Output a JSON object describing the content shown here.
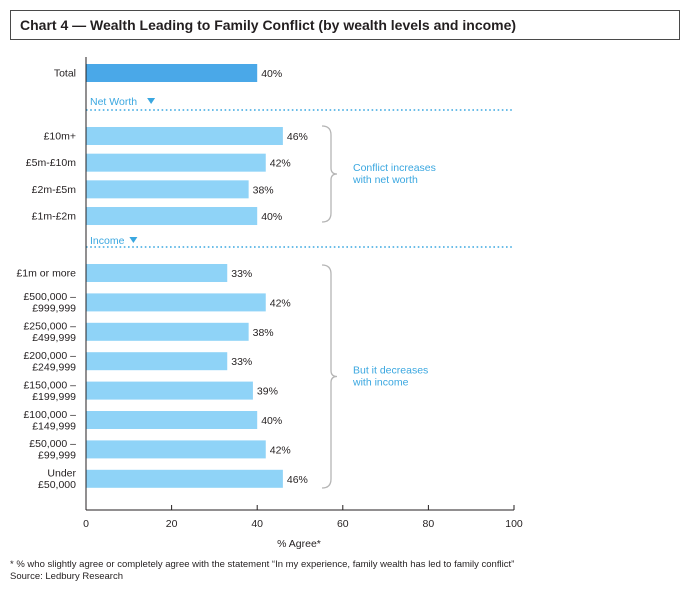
{
  "chart_data": {
    "type": "bar",
    "orientation": "horizontal",
    "title": "Chart 4 — Wealth Leading to Family Conflict (by wealth levels and income)",
    "xlabel": "% Agree*",
    "xlim": [
      0,
      100
    ],
    "xticks": [
      "0",
      "20",
      "40",
      "60",
      "80",
      "100"
    ],
    "total": {
      "label": "Total",
      "value": 40,
      "value_label": "40%"
    },
    "groups": [
      {
        "name": "Net Worth",
        "annotation": [
          "Conflict increases",
          "with net worth"
        ],
        "categories": [
          [
            "£10m+"
          ],
          [
            "£5m-£10m"
          ],
          [
            "£2m-£5m"
          ],
          [
            "£1m-£2m"
          ]
        ],
        "values": [
          46,
          42,
          38,
          40
        ],
        "value_labels": [
          "46%",
          "42%",
          "38%",
          "40%"
        ]
      },
      {
        "name": "Income",
        "annotation": [
          "But it decreases",
          "with income"
        ],
        "categories": [
          [
            "£1m or more"
          ],
          [
            "£500,000 –",
            "£999,999"
          ],
          [
            "£250,000 –",
            "£499,999"
          ],
          [
            "£200,000 –",
            "£249,999"
          ],
          [
            "£150,000 –",
            "£199,999"
          ],
          [
            "£100,000 –",
            "£149,999"
          ],
          [
            "£50,000 –",
            "£99,999"
          ],
          [
            "Under",
            "£50,000"
          ]
        ],
        "values": [
          33,
          42,
          38,
          33,
          39,
          40,
          42,
          46
        ],
        "value_labels": [
          "33%",
          "42%",
          "38%",
          "33%",
          "39%",
          "40%",
          "42%",
          "46%"
        ]
      }
    ],
    "colors": {
      "total_bar": "#4aa8e8",
      "bar": "#8fd3f7",
      "accent": "#3aa7e0",
      "axis": "#231f20"
    }
  },
  "footnote": "* % who slightly agree or completely agree with the statement “In my experience, family wealth has led to family conflict”",
  "source": "Source: Ledbury Research"
}
